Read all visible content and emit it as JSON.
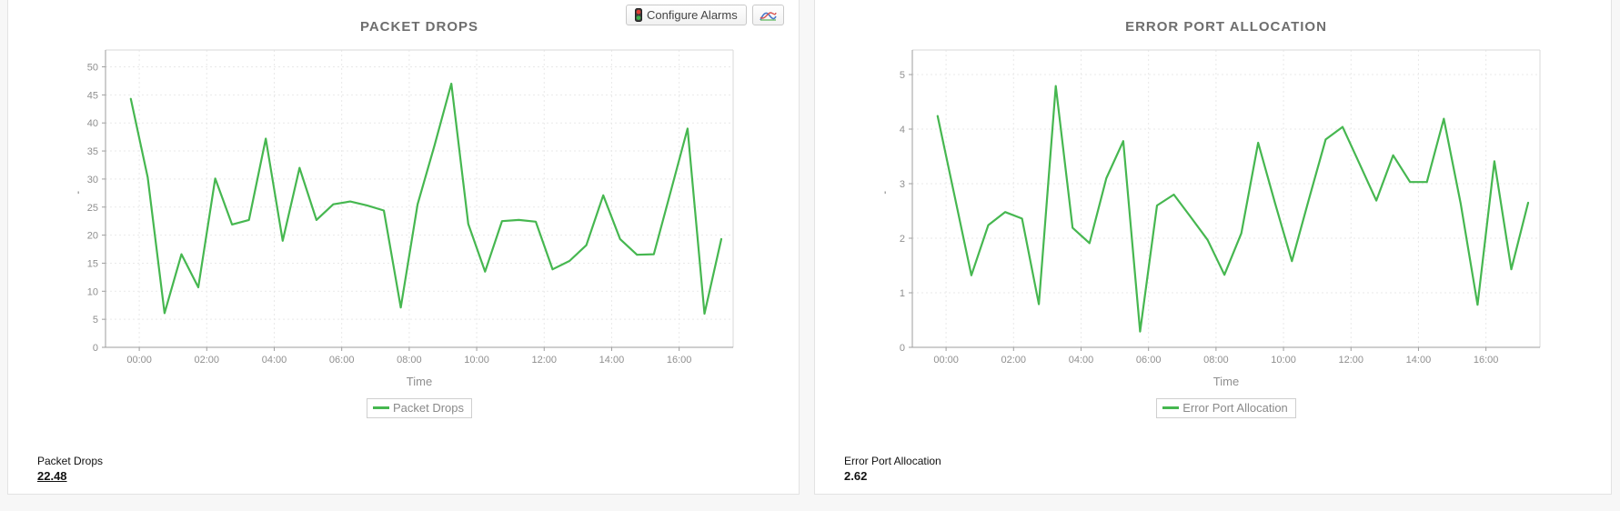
{
  "toolbar": {
    "configure_alarms_label": "Configure Alarms",
    "icons": {
      "traffic_light": "traffic-light-icon",
      "chart": "line-chart-icon"
    }
  },
  "panels": [
    {
      "title": "PACKET DROPS",
      "y_axis_unit": "'",
      "legend_label": "Packet Drops",
      "summary_label": "Packet Drops",
      "summary_value": "22.48"
    },
    {
      "title": "ERROR PORT ALLOCATION",
      "y_axis_unit": "'",
      "legend_label": "Error Port Allocation",
      "summary_label": "Error Port Allocation",
      "summary_value": "2.62"
    }
  ],
  "colors": {
    "series_green": "#46b750",
    "grid": "#e9e9e9",
    "axis": "#9e9e9e",
    "plot_border": "#dadada",
    "tick_text": "#8f8f8f"
  },
  "chart_data": [
    {
      "type": "line",
      "title": "PACKET DROPS",
      "xlabel": "Time",
      "ylabel": "'",
      "grid": true,
      "legend_position": "bottom",
      "x_tick_labels": [
        "00:00",
        "02:00",
        "04:00",
        "06:00",
        "08:00",
        "10:00",
        "12:00",
        "14:00",
        "16:00"
      ],
      "x_tick_hours": [
        0,
        2,
        4,
        6,
        8,
        10,
        12,
        14,
        16
      ],
      "xlim": [
        -1,
        17.6
      ],
      "ylim": [
        0,
        53
      ],
      "y_ticks": [
        0,
        5,
        10,
        15,
        20,
        25,
        30,
        35,
        40,
        45,
        50
      ],
      "current_value": 22.48,
      "series": [
        {
          "name": "Packet Drops",
          "color": "#46b750",
          "x_hours": [
            -0.25,
            0.25,
            0.75,
            1.25,
            1.75,
            2.25,
            2.75,
            3.25,
            3.75,
            4.25,
            4.75,
            5.25,
            5.75,
            6.25,
            6.75,
            7.25,
            7.75,
            8.25,
            8.75,
            9.25,
            9.75,
            10.25,
            10.75,
            11.25,
            11.75,
            12.25,
            12.75,
            13.25,
            13.75,
            14.25,
            14.75,
            15.25,
            15.75,
            16.25,
            16.75,
            17.25
          ],
          "values": [
            44.3,
            30.3,
            6.1,
            16.6,
            10.7,
            30.1,
            21.9,
            22.7,
            37.2,
            19.0,
            32.0,
            22.7,
            25.5,
            26.0,
            25.3,
            24.4,
            7.1,
            25.5,
            36.0,
            47.0,
            22.0,
            13.5,
            22.5,
            22.7,
            22.4,
            13.9,
            15.4,
            18.2,
            27.1,
            19.3,
            16.5,
            16.6,
            27.8,
            39.0,
            6.0,
            19.3
          ]
        }
      ]
    },
    {
      "type": "line",
      "title": "ERROR PORT ALLOCATION",
      "xlabel": "Time",
      "ylabel": "'",
      "grid": true,
      "legend_position": "bottom",
      "x_tick_labels": [
        "00:00",
        "02:00",
        "04:00",
        "06:00",
        "08:00",
        "10:00",
        "12:00",
        "14:00",
        "16:00"
      ],
      "x_tick_hours": [
        0,
        2,
        4,
        6,
        8,
        10,
        12,
        14,
        16
      ],
      "xlim": [
        -1,
        17.6
      ],
      "ylim": [
        0,
        5.45
      ],
      "y_ticks": [
        0,
        1,
        2,
        3,
        4,
        5
      ],
      "current_value": 2.62,
      "series": [
        {
          "name": "Error Port Allocation",
          "color": "#46b750",
          "x_hours": [
            -0.25,
            0.25,
            0.75,
            1.25,
            1.75,
            2.25,
            2.75,
            3.25,
            3.75,
            4.25,
            4.75,
            5.25,
            5.75,
            6.25,
            6.75,
            7.25,
            7.75,
            8.25,
            8.75,
            9.25,
            9.75,
            10.25,
            10.75,
            11.25,
            11.75,
            12.25,
            12.75,
            13.25,
            13.75,
            14.25,
            14.75,
            15.25,
            15.75,
            16.25,
            16.75,
            17.25
          ],
          "values": [
            4.24,
            2.78,
            1.32,
            2.24,
            2.48,
            2.36,
            0.79,
            4.79,
            2.19,
            1.91,
            3.1,
            3.78,
            0.29,
            2.6,
            2.8,
            2.39,
            1.97,
            1.33,
            2.09,
            3.75,
            2.64,
            1.58,
            2.71,
            3.81,
            4.04,
            3.37,
            2.69,
            3.52,
            3.03,
            3.03,
            4.19,
            2.64,
            0.78,
            3.41,
            1.43,
            2.65
          ]
        }
      ]
    }
  ]
}
